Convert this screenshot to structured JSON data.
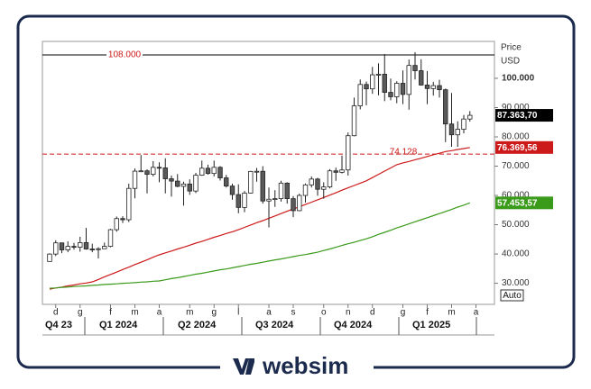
{
  "chart_data": {
    "type": "candlestick",
    "y_label": "Price",
    "y_unit": "USD",
    "categories": [
      null,
      "d",
      null,
      null,
      null,
      "g",
      null,
      null,
      null,
      null,
      "f",
      null,
      null,
      null,
      "m",
      null,
      null,
      null,
      "a",
      null,
      null,
      null,
      null,
      "m",
      null,
      null,
      null,
      "g",
      null,
      null,
      null,
      "l",
      null,
      null,
      null,
      null,
      "a",
      null,
      null,
      null,
      "s",
      null,
      null,
      null,
      null,
      "o",
      null,
      null,
      null,
      "n",
      null,
      null,
      null,
      "d",
      null,
      null,
      null,
      null,
      "g",
      null,
      null,
      null,
      "f",
      null,
      null,
      null,
      "m",
      null,
      null,
      null,
      "a"
    ],
    "open": [
      37450,
      39970,
      43800,
      41400,
      42600,
      42300,
      43900,
      41700,
      41600,
      41800,
      42600,
      48300,
      52100,
      51700,
      62400,
      68300,
      68400,
      67200,
      69600,
      69400,
      65700,
      64900,
      63100,
      63900,
      61500,
      66900,
      69300,
      67500,
      69600,
      66000,
      63200,
      60300,
      55900,
      60800,
      68200,
      68250,
      58100,
      58700,
      58900,
      64200,
      58900,
      54800,
      60000,
      63600,
      65600,
      62100,
      62900,
      68400,
      67900,
      68700,
      80400,
      90600,
      97900,
      96400,
      101200,
      101400,
      95200,
      93700,
      98300,
      94500,
      104400,
      102600,
      97700,
      96500,
      97500,
      96100,
      84400,
      80700,
      82600,
      86100,
      null
    ],
    "high": [
      40250,
      44700,
      43800,
      44300,
      43800,
      45900,
      48900,
      43500,
      42300,
      43900,
      48600,
      52800,
      52900,
      64000,
      69200,
      73800,
      68900,
      71700,
      71300,
      72700,
      66800,
      67300,
      64700,
      65500,
      67700,
      71900,
      70500,
      71900,
      70000,
      67000,
      64000,
      63800,
      61500,
      68400,
      69400,
      70000,
      62700,
      61800,
      65000,
      64500,
      59800,
      60600,
      64100,
      66500,
      66000,
      64500,
      69000,
      69500,
      73600,
      81500,
      93400,
      99600,
      98900,
      103900,
      105100,
      108300,
      99900,
      99000,
      102700,
      106400,
      108900,
      106500,
      102500,
      98800,
      99500,
      96500,
      95000,
      85300,
      87500,
      88800,
      null
    ],
    "low": [
      37500,
      39300,
      40300,
      40600,
      41500,
      40800,
      41500,
      40600,
      38500,
      41800,
      42300,
      47600,
      50600,
      50900,
      59000,
      68000,
      60700,
      66500,
      64500,
      60700,
      59600,
      62800,
      56500,
      60200,
      60800,
      66700,
      67100,
      66500,
      65100,
      62700,
      58500,
      53900,
      54300,
      60700,
      64700,
      57200,
      49100,
      56100,
      57900,
      57200,
      52600,
      54600,
      57600,
      62700,
      59900,
      58900,
      62400,
      65000,
      67500,
      66800,
      80200,
      89400,
      90800,
      94700,
      94200,
      92200,
      92500,
      91500,
      91200,
      89300,
      99600,
      97500,
      91200,
      94100,
      93400,
      78200,
      76600,
      76600,
      81200,
      85200,
      null
    ],
    "close": [
      39970,
      43800,
      41400,
      42600,
      42300,
      43900,
      41700,
      41600,
      41800,
      42600,
      48300,
      52100,
      51700,
      62400,
      68300,
      68400,
      67200,
      69600,
      69400,
      65700,
      64900,
      63100,
      63900,
      61500,
      66900,
      69300,
      67500,
      69600,
      66000,
      63200,
      60300,
      55900,
      60800,
      68200,
      68250,
      58100,
      58700,
      58900,
      64200,
      58900,
      54800,
      60000,
      63600,
      65600,
      62100,
      62900,
      68400,
      67900,
      68700,
      80400,
      90600,
      97900,
      96400,
      101200,
      101400,
      95200,
      93700,
      98300,
      94500,
      104400,
      102600,
      97700,
      96500,
      97500,
      96100,
      84400,
      80700,
      82600,
      86100,
      87363.7,
      null
    ],
    "last_label": "87.363,70",
    "up_color": "#ffffff",
    "down_color": "#5a5a5a",
    "lines": [
      {
        "color": "#cc1a1a",
        "value_label": "76.369,56",
        "values": [
          28000,
          28400,
          28700,
          29100,
          29400,
          29800,
          30100,
          30500,
          31300,
          32200,
          33000,
          33800,
          34700,
          35500,
          36400,
          37200,
          38000,
          38900,
          39700,
          40400,
          41000,
          41700,
          42300,
          43000,
          43700,
          44300,
          45000,
          45700,
          46300,
          47000,
          47600,
          48300,
          49100,
          49900,
          50700,
          51400,
          52200,
          53000,
          53800,
          54600,
          55400,
          56100,
          56900,
          57700,
          58500,
          59300,
          60100,
          60900,
          61800,
          62600,
          63400,
          64200,
          65000,
          66100,
          67200,
          68300,
          69400,
          70500,
          71100,
          71600,
          72200,
          72700,
          73300,
          73900,
          74400,
          75000,
          75300,
          75700,
          76000,
          76369.56,
          null
        ]
      },
      {
        "color": "#3a9a1a",
        "value_label": "57.453,57",
        "values": [
          28300,
          28400,
          28600,
          28700,
          28900,
          29000,
          29100,
          29300,
          29400,
          29600,
          29700,
          29800,
          30000,
          30100,
          30200,
          30400,
          30500,
          30700,
          30800,
          31200,
          31600,
          31900,
          32300,
          32700,
          33100,
          33400,
          33800,
          34200,
          34600,
          34900,
          35300,
          35700,
          36100,
          36500,
          36800,
          37200,
          37600,
          38000,
          38300,
          38700,
          39100,
          39500,
          39800,
          40200,
          40600,
          41200,
          41700,
          42300,
          42900,
          43500,
          44000,
          44600,
          45200,
          45900,
          46700,
          47400,
          48100,
          48900,
          49600,
          50300,
          51000,
          51700,
          52400,
          53100,
          53800,
          54500,
          55200,
          56000,
          56700,
          57453.57,
          null
        ]
      }
    ],
    "hlines": [
      {
        "value": 108000,
        "label": "108.000",
        "color": "#000000",
        "label_color": "#cc1a1a",
        "style": "solid"
      },
      {
        "value": 74128,
        "label": "74.128",
        "color": "#cc1a1a",
        "label_color": "#cc1a1a",
        "style": "dashed"
      }
    ],
    "quarters": [
      "Q4 23",
      "Q1 2024",
      "Q2 2024",
      "Q3 2024",
      "Q4 2024",
      "Q1 2025"
    ],
    "ylim": [
      22800,
      112600
    ],
    "yticks": [
      {
        "value": 30000,
        "label": "30.000"
      },
      {
        "value": 40000,
        "label": "40.000"
      },
      {
        "value": 50000,
        "label": "50.000"
      },
      {
        "value": 60000,
        "label": "60.000"
      },
      {
        "value": 70000,
        "label": "70.000"
      },
      {
        "value": 80000,
        "label": "80.000"
      },
      {
        "value": 90000,
        "label": "90.000"
      },
      {
        "value": 100000,
        "label": "100.000"
      }
    ],
    "scale_button": "Auto"
  },
  "brand": "websim"
}
